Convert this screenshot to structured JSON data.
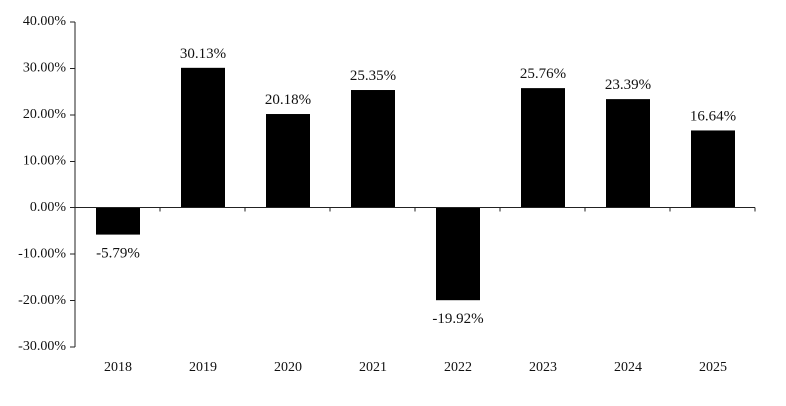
{
  "chart_data": {
    "type": "bar",
    "title": "",
    "xlabel": "",
    "ylabel": "",
    "categories": [
      "2018",
      "2019",
      "2020",
      "2021",
      "2022",
      "2023",
      "2024",
      "2025"
    ],
    "values": [
      -5.79,
      30.13,
      20.18,
      25.35,
      -19.92,
      25.76,
      23.39,
      16.64
    ],
    "data_labels": [
      "-5.79%",
      "30.13%",
      "20.18%",
      "25.35%",
      "-19.92%",
      "25.76%",
      "23.39%",
      "16.64%"
    ],
    "ylim": [
      -30,
      40
    ],
    "y_ticks": [
      40,
      30,
      20,
      10,
      0,
      -10,
      -20,
      -30
    ],
    "y_tick_labels": [
      "40.00%",
      "30.00%",
      "20.00%",
      "10.00%",
      "0.00%",
      "-10.00%",
      "-20.00%",
      "-30.00%"
    ],
    "grid": false,
    "legend": "none",
    "bar_color": "#000000"
  }
}
